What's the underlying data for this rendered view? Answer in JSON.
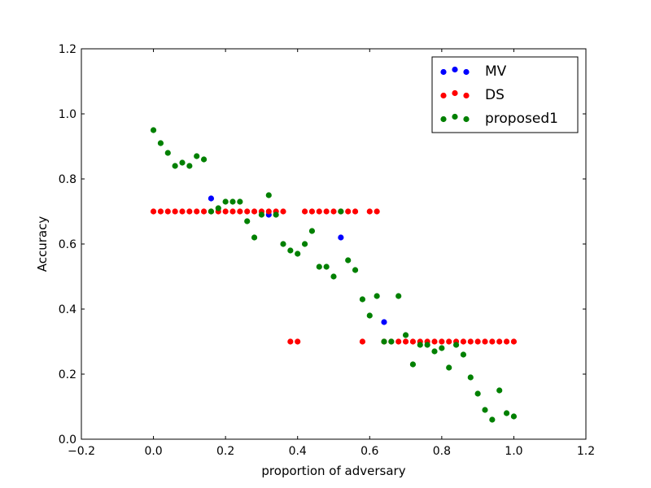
{
  "chart_data": {
    "type": "scatter",
    "xlabel": "proportion of adversary",
    "ylabel": "Accuracy",
    "xlim": [
      -0.2,
      1.2
    ],
    "ylim": [
      0.0,
      1.2
    ],
    "xticks": [
      "−0.2",
      "0.0",
      "0.2",
      "0.4",
      "0.6",
      "0.8",
      "1.0",
      "1.2"
    ],
    "xtick_values": [
      -0.2,
      0.0,
      0.2,
      0.4,
      0.6,
      0.8,
      1.0,
      1.2
    ],
    "yticks": [
      "0.0",
      "0.2",
      "0.4",
      "0.6",
      "0.8",
      "1.0",
      "1.2"
    ],
    "ytick_values": [
      0.0,
      0.2,
      0.4,
      0.6,
      0.8,
      1.0,
      1.2
    ],
    "grid": false,
    "legend_position": "top-right",
    "series": [
      {
        "name": "MV",
        "color": "#0000ff",
        "points": [
          [
            0.16,
            0.74
          ],
          [
            0.32,
            0.69
          ],
          [
            0.52,
            0.62
          ],
          [
            0.64,
            0.36
          ]
        ]
      },
      {
        "name": "DS",
        "color": "#ff0000",
        "points": [
          [
            0.0,
            0.7
          ],
          [
            0.02,
            0.7
          ],
          [
            0.04,
            0.7
          ],
          [
            0.06,
            0.7
          ],
          [
            0.08,
            0.7
          ],
          [
            0.1,
            0.7
          ],
          [
            0.12,
            0.7
          ],
          [
            0.14,
            0.7
          ],
          [
            0.16,
            0.7
          ],
          [
            0.18,
            0.7
          ],
          [
            0.2,
            0.7
          ],
          [
            0.22,
            0.7
          ],
          [
            0.24,
            0.7
          ],
          [
            0.26,
            0.7
          ],
          [
            0.28,
            0.7
          ],
          [
            0.3,
            0.7
          ],
          [
            0.32,
            0.7
          ],
          [
            0.34,
            0.7
          ],
          [
            0.36,
            0.7
          ],
          [
            0.38,
            0.3
          ],
          [
            0.4,
            0.3
          ],
          [
            0.42,
            0.7
          ],
          [
            0.44,
            0.7
          ],
          [
            0.46,
            0.7
          ],
          [
            0.48,
            0.7
          ],
          [
            0.5,
            0.7
          ],
          [
            0.52,
            0.7
          ],
          [
            0.54,
            0.7
          ],
          [
            0.56,
            0.7
          ],
          [
            0.58,
            0.3
          ],
          [
            0.6,
            0.7
          ],
          [
            0.62,
            0.7
          ],
          [
            0.64,
            0.3
          ],
          [
            0.66,
            0.3
          ],
          [
            0.68,
            0.3
          ],
          [
            0.7,
            0.3
          ],
          [
            0.72,
            0.3
          ],
          [
            0.74,
            0.3
          ],
          [
            0.76,
            0.3
          ],
          [
            0.78,
            0.3
          ],
          [
            0.8,
            0.3
          ],
          [
            0.82,
            0.3
          ],
          [
            0.84,
            0.3
          ],
          [
            0.86,
            0.3
          ],
          [
            0.88,
            0.3
          ],
          [
            0.9,
            0.3
          ],
          [
            0.92,
            0.3
          ],
          [
            0.94,
            0.3
          ],
          [
            0.96,
            0.3
          ],
          [
            0.98,
            0.3
          ],
          [
            1.0,
            0.3
          ]
        ]
      },
      {
        "name": "proposed1",
        "color": "#008000",
        "points": [
          [
            0.0,
            0.95
          ],
          [
            0.02,
            0.91
          ],
          [
            0.04,
            0.88
          ],
          [
            0.06,
            0.84
          ],
          [
            0.08,
            0.85
          ],
          [
            0.1,
            0.84
          ],
          [
            0.12,
            0.87
          ],
          [
            0.14,
            0.86
          ],
          [
            0.16,
            0.7
          ],
          [
            0.18,
            0.71
          ],
          [
            0.2,
            0.73
          ],
          [
            0.22,
            0.73
          ],
          [
            0.24,
            0.73
          ],
          [
            0.26,
            0.67
          ],
          [
            0.28,
            0.62
          ],
          [
            0.3,
            0.69
          ],
          [
            0.32,
            0.75
          ],
          [
            0.34,
            0.69
          ],
          [
            0.36,
            0.6
          ],
          [
            0.38,
            0.58
          ],
          [
            0.4,
            0.57
          ],
          [
            0.42,
            0.6
          ],
          [
            0.44,
            0.64
          ],
          [
            0.46,
            0.53
          ],
          [
            0.48,
            0.53
          ],
          [
            0.5,
            0.5
          ],
          [
            0.52,
            0.7
          ],
          [
            0.54,
            0.55
          ],
          [
            0.56,
            0.52
          ],
          [
            0.58,
            0.43
          ],
          [
            0.6,
            0.38
          ],
          [
            0.62,
            0.44
          ],
          [
            0.64,
            0.3
          ],
          [
            0.66,
            0.3
          ],
          [
            0.68,
            0.44
          ],
          [
            0.7,
            0.32
          ],
          [
            0.72,
            0.23
          ],
          [
            0.74,
            0.29
          ],
          [
            0.76,
            0.29
          ],
          [
            0.78,
            0.27
          ],
          [
            0.8,
            0.28
          ],
          [
            0.82,
            0.22
          ],
          [
            0.84,
            0.29
          ],
          [
            0.86,
            0.26
          ],
          [
            0.88,
            0.19
          ],
          [
            0.9,
            0.14
          ],
          [
            0.92,
            0.09
          ],
          [
            0.94,
            0.06
          ],
          [
            0.96,
            0.15
          ],
          [
            0.98,
            0.08
          ],
          [
            1.0,
            0.07
          ]
        ]
      }
    ]
  }
}
